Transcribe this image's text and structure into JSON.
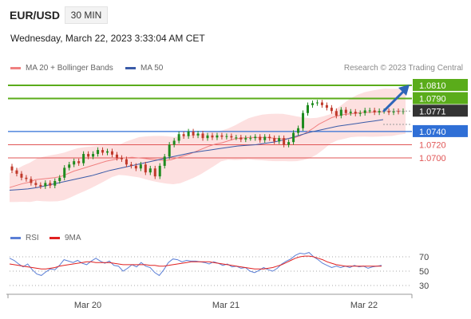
{
  "header": {
    "symbol": "EUR/USD",
    "timeframe": "30 MIN",
    "datetime": "Wednesday, March 22, 2023 3:33:04 AM CET",
    "credit": "Research © 2023 Trading Central"
  },
  "legend": {
    "ma20": "MA 20 + Bollinger Bands",
    "ma50": "MA 50",
    "rsi": "RSI",
    "ma9": "9MA"
  },
  "colors": {
    "bullish": "#1e8b1e",
    "bearish": "#c0392b",
    "ma20": "#f08080",
    "bollinger_fill": "#fde0e0",
    "ma50": "#3a5ba8",
    "resistance": "#5aac1a",
    "support_main": "#2f6fd6",
    "support_minor": "#e05555",
    "rsi": "#5b7fd6",
    "rsi_ma": "#e02020"
  },
  "chart_data": [
    {
      "type": "candlestick",
      "x_labels": [
        "Mar 20",
        "Mar 21",
        "Mar 22"
      ],
      "current_price": 1.0771,
      "levels": [
        {
          "value": 1.081,
          "label": "1.0810",
          "kind": "resistance"
        },
        {
          "value": 1.079,
          "label": "1.0790",
          "kind": "resistance"
        },
        {
          "value": 1.074,
          "label": "1.0740",
          "kind": "support"
        },
        {
          "value": 1.072,
          "label": "1.0720",
          "kind": "support"
        },
        {
          "value": 1.07,
          "label": "1.0700",
          "kind": "support"
        }
      ],
      "current_label": "1.0771",
      "projection": {
        "from": 1.0771,
        "to": 1.081,
        "direction": "up"
      },
      "closes": [
        1.0681,
        1.0676,
        1.067,
        1.0668,
        1.0662,
        1.0659,
        1.0657,
        1.0662,
        1.0658,
        1.0665,
        1.067,
        1.0685,
        1.069,
        1.0695,
        1.0692,
        1.0706,
        1.0702,
        1.0706,
        1.0712,
        1.0708,
        1.071,
        1.0705,
        1.07,
        1.0698,
        1.069,
        1.0688,
        1.0684,
        1.069,
        1.0678,
        1.0684,
        1.0672,
        1.0688,
        1.0702,
        1.072,
        1.0726,
        1.0736,
        1.0733,
        1.074,
        1.0734,
        1.0737,
        1.073,
        1.0734,
        1.0731,
        1.0734,
        1.0732,
        1.0733,
        1.0731,
        1.0731,
        1.0728,
        1.073,
        1.073,
        1.0732,
        1.0727,
        1.0732,
        1.073,
        1.0725,
        1.073,
        1.072,
        1.0724,
        1.0738,
        1.0745,
        1.0768,
        1.078,
        1.0783,
        1.0784,
        1.078,
        1.0776,
        1.0771,
        1.0764,
        1.0773,
        1.0768,
        1.077,
        1.0767,
        1.0768,
        1.0772,
        1.0772,
        1.0769,
        1.0771,
        1.0771,
        1.0769,
        1.0771,
        1.077,
        1.0771
      ],
      "ma20": [
        1.0655,
        1.0658,
        1.0661,
        1.0663,
        1.0667,
        1.0668,
        1.0669,
        1.067,
        1.0672,
        1.0676,
        1.068,
        1.0683,
        1.0686,
        1.0689,
        1.0692,
        1.0695,
        1.0697,
        1.0699,
        1.07,
        1.0701,
        1.07,
        1.0699,
        1.0698,
        1.0697,
        1.0696,
        1.0697,
        1.07,
        1.0703,
        1.0706,
        1.071,
        1.0714,
        1.0718,
        1.0721,
        1.0723,
        1.0726,
        1.0729,
        1.073,
        1.0731,
        1.0731,
        1.0731,
        1.0731,
        1.073,
        1.0729,
        1.0729,
        1.073,
        1.0733,
        1.0738,
        1.0744,
        1.0751,
        1.0756,
        1.0761,
        1.0764,
        1.0766,
        1.0767,
        1.0768,
        1.0769,
        1.0769,
        1.077,
        1.077
      ],
      "ma50": [
        1.0651,
        1.0652,
        1.0653,
        1.0655,
        1.0658,
        1.0661,
        1.0664,
        1.0667,
        1.067,
        1.0673,
        1.0677,
        1.0681,
        1.0684,
        1.0687,
        1.069,
        1.0693,
        1.0696,
        1.0699,
        1.0702,
        1.0705,
        1.0708,
        1.071,
        1.0712,
        1.0714,
        1.0716,
        1.0718,
        1.0719,
        1.072,
        1.0722,
        1.0724,
        1.0727,
        1.0731,
        1.0735,
        1.0739,
        1.0742,
        1.0745,
        1.0748,
        1.075,
        1.0752,
        1.0754,
        1.0756,
        1.0758
      ]
    },
    {
      "type": "line",
      "name": "RSI",
      "y_ticks": [
        70,
        50,
        30
      ],
      "ylim": [
        20,
        80
      ],
      "rsi": [
        68,
        65,
        60,
        56,
        60,
        52,
        46,
        44,
        49,
        53,
        52,
        58,
        66,
        64,
        62,
        65,
        61,
        59,
        64,
        68,
        64,
        61,
        64,
        58,
        57,
        50,
        54,
        59,
        56,
        62,
        57,
        55,
        48,
        44,
        52,
        62,
        67,
        66,
        63,
        65,
        64,
        64,
        63,
        62,
        60,
        63,
        61,
        58,
        60,
        56,
        57,
        54,
        55,
        50,
        48,
        51,
        55,
        52,
        50,
        54,
        60,
        64,
        67,
        72,
        75,
        74,
        76,
        70,
        66,
        61,
        58,
        55,
        57,
        55,
        57,
        55,
        58,
        56,
        57,
        54,
        56,
        57,
        58
      ],
      "ma9": [
        60,
        59,
        58,
        57,
        56,
        55,
        54,
        53,
        53,
        54,
        55,
        57,
        58,
        59,
        60,
        61,
        62,
        63,
        63,
        62,
        62,
        62,
        62,
        61,
        60,
        59,
        59,
        59,
        59,
        59,
        59,
        58,
        58,
        57,
        57,
        58,
        59,
        60,
        61,
        62,
        63,
        63,
        63,
        63,
        63,
        62,
        61,
        60,
        59,
        58,
        57,
        56,
        55,
        54,
        53,
        53,
        53,
        54,
        55,
        57,
        59,
        62,
        65,
        68,
        70,
        71,
        71,
        70,
        68,
        66,
        63,
        61,
        59,
        58,
        57,
        57,
        57,
        57,
        57,
        57,
        57,
        57,
        57
      ]
    }
  ]
}
